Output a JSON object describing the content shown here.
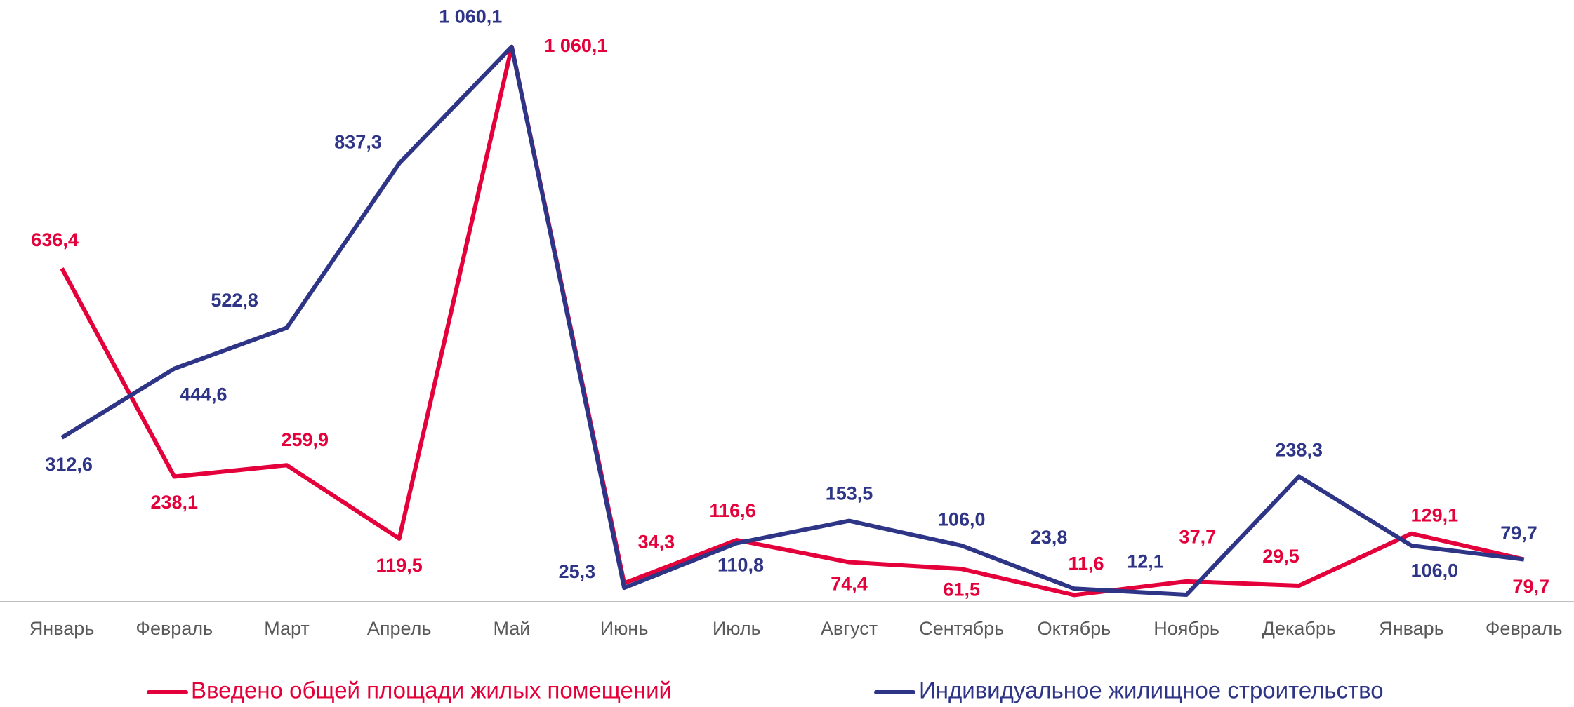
{
  "chart_data": {
    "type": "line",
    "categories": [
      "Январь",
      "Февраль",
      "Март",
      "Апрель",
      "Май",
      "Июнь",
      "Июль",
      "Август",
      "Сентябрь",
      "Октябрь",
      "Ноябрь",
      "Декабрь",
      "Январь",
      "Февраль"
    ],
    "series": [
      {
        "name": "Введено общей площади жилых помещений",
        "color": "#e4003a",
        "values": [
          636.4,
          238.1,
          259.9,
          119.5,
          1060.1,
          34.3,
          116.6,
          74.4,
          61.5,
          11.6,
          37.7,
          29.5,
          129.1,
          79.7
        ],
        "value_labels": [
          "636,4",
          "238,1",
          "259,9",
          "119,5",
          "1 060,1",
          "34,3",
          "116,6",
          "74,4",
          "61,5",
          "11,6",
          "37,7",
          "29,5",
          "129,1",
          "79,7"
        ]
      },
      {
        "name": "Индивидуальное жилищное строительство",
        "color": "#2e3586",
        "values": [
          312.6,
          444.6,
          522.8,
          837.3,
          1060.1,
          25.3,
          110.8,
          153.5,
          106.0,
          23.8,
          12.1,
          238.3,
          106.0,
          79.7
        ],
        "value_labels": [
          "312,6",
          "444,6",
          "522,8",
          "837,3",
          "1 060,1",
          "25,3",
          "110,8",
          "153,5",
          "106,0",
          "23,8",
          "12,1",
          "238,3",
          "106,0",
          "79,7"
        ]
      }
    ],
    "ylim": [
      0,
      1100
    ],
    "legend": "bottom"
  }
}
